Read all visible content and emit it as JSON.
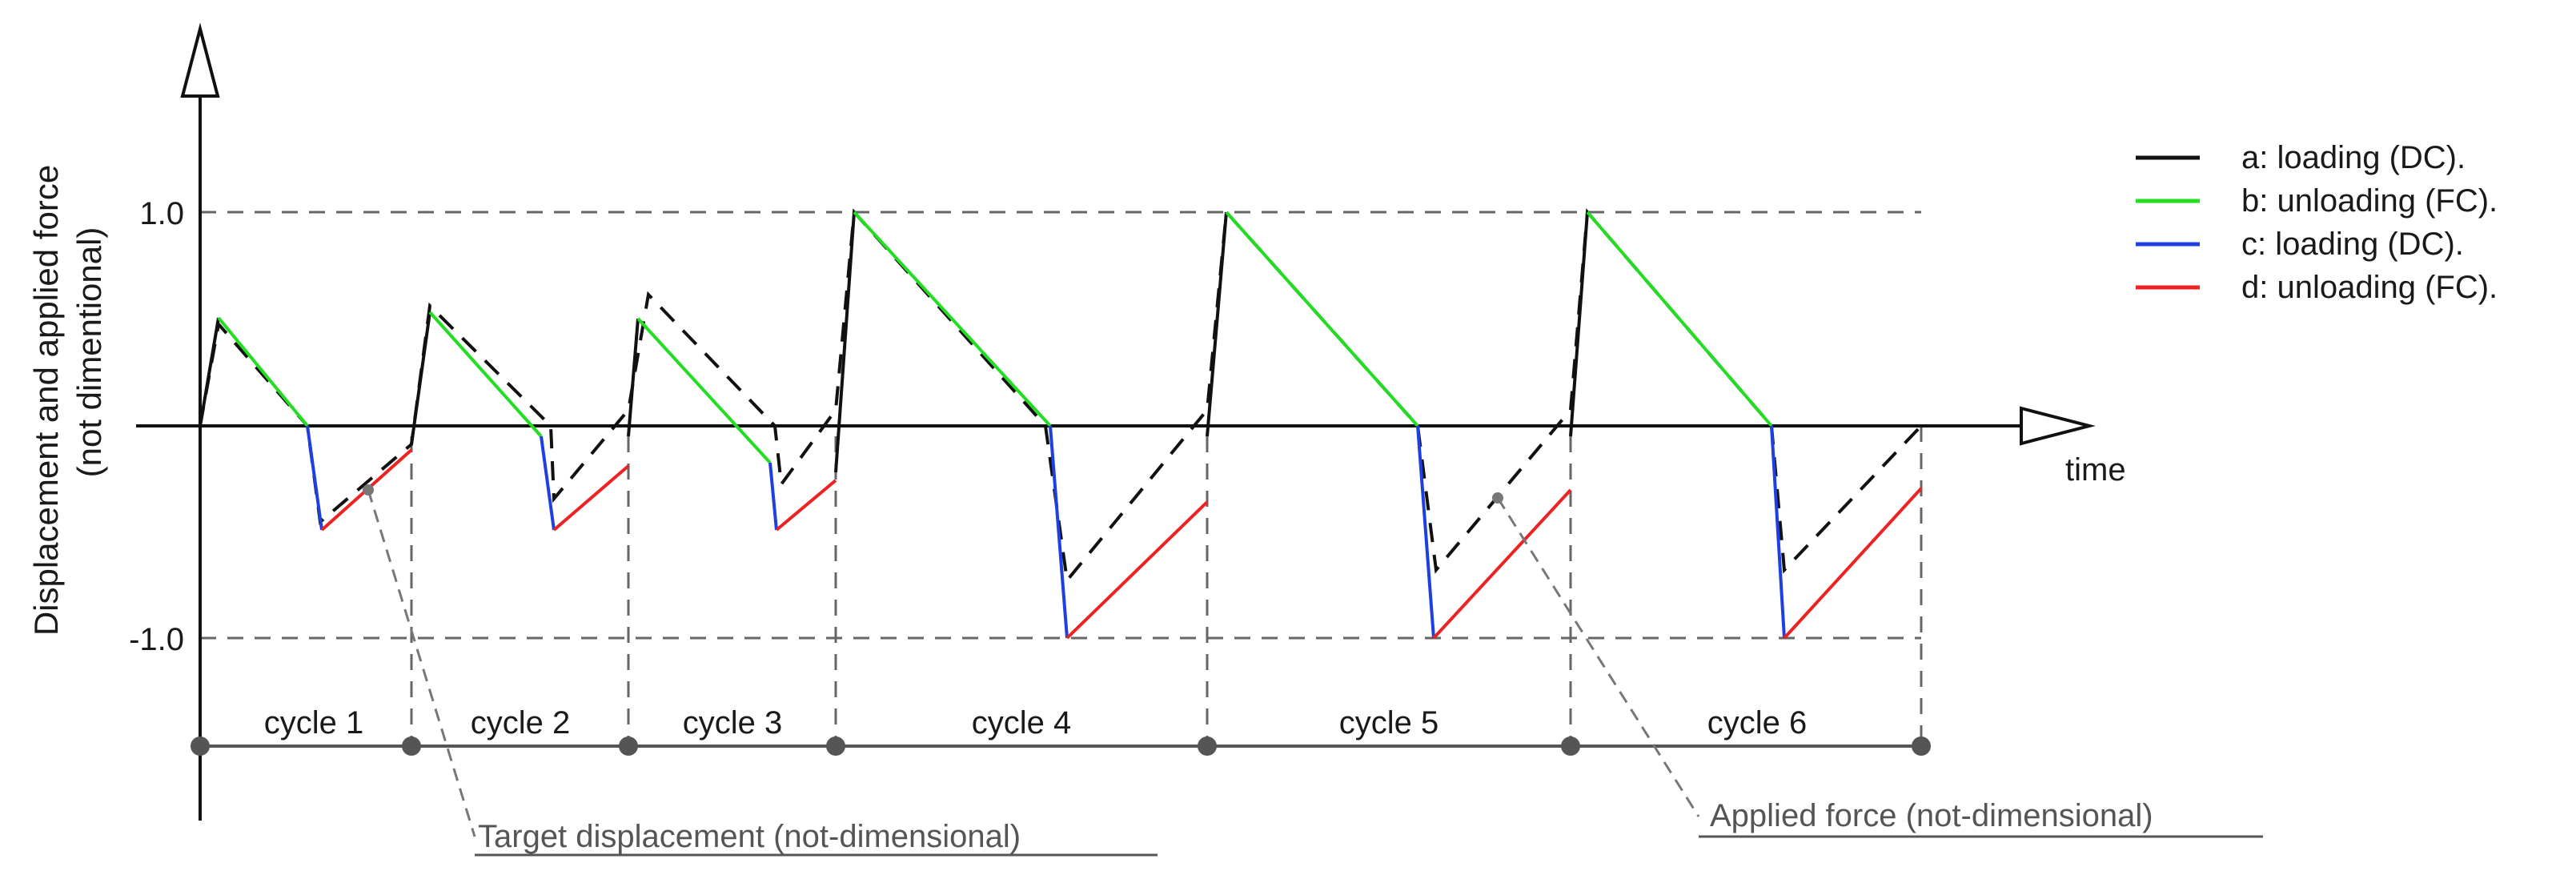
{
  "axes": {
    "y_label_line1": "Displacement and applied force",
    "y_label_line2": "(not dimentional)",
    "x_label": "time",
    "y_tick_top": "1.0",
    "y_tick_bottom": "-1.0"
  },
  "legend": [
    {
      "label": "a: loading (DC).",
      "color": "#111111"
    },
    {
      "label": "b: unloading (FC).",
      "color": "#22dd22"
    },
    {
      "label": "c: loading (DC).",
      "color": "#1f3fe0"
    },
    {
      "label": "d: unloading (FC).",
      "color": "#ee2222"
    }
  ],
  "cycles": [
    "cycle 1",
    "cycle 2",
    "cycle 3",
    "cycle 4",
    "cycle 5",
    "cycle 6"
  ],
  "callouts": {
    "target": "Target displacement (not-dimensional)",
    "force": "Applied force (not-dimensional)"
  },
  "colors": {
    "axis": "#111111",
    "dashed_guides": "#666666",
    "target_dashed": "#111111"
  }
}
